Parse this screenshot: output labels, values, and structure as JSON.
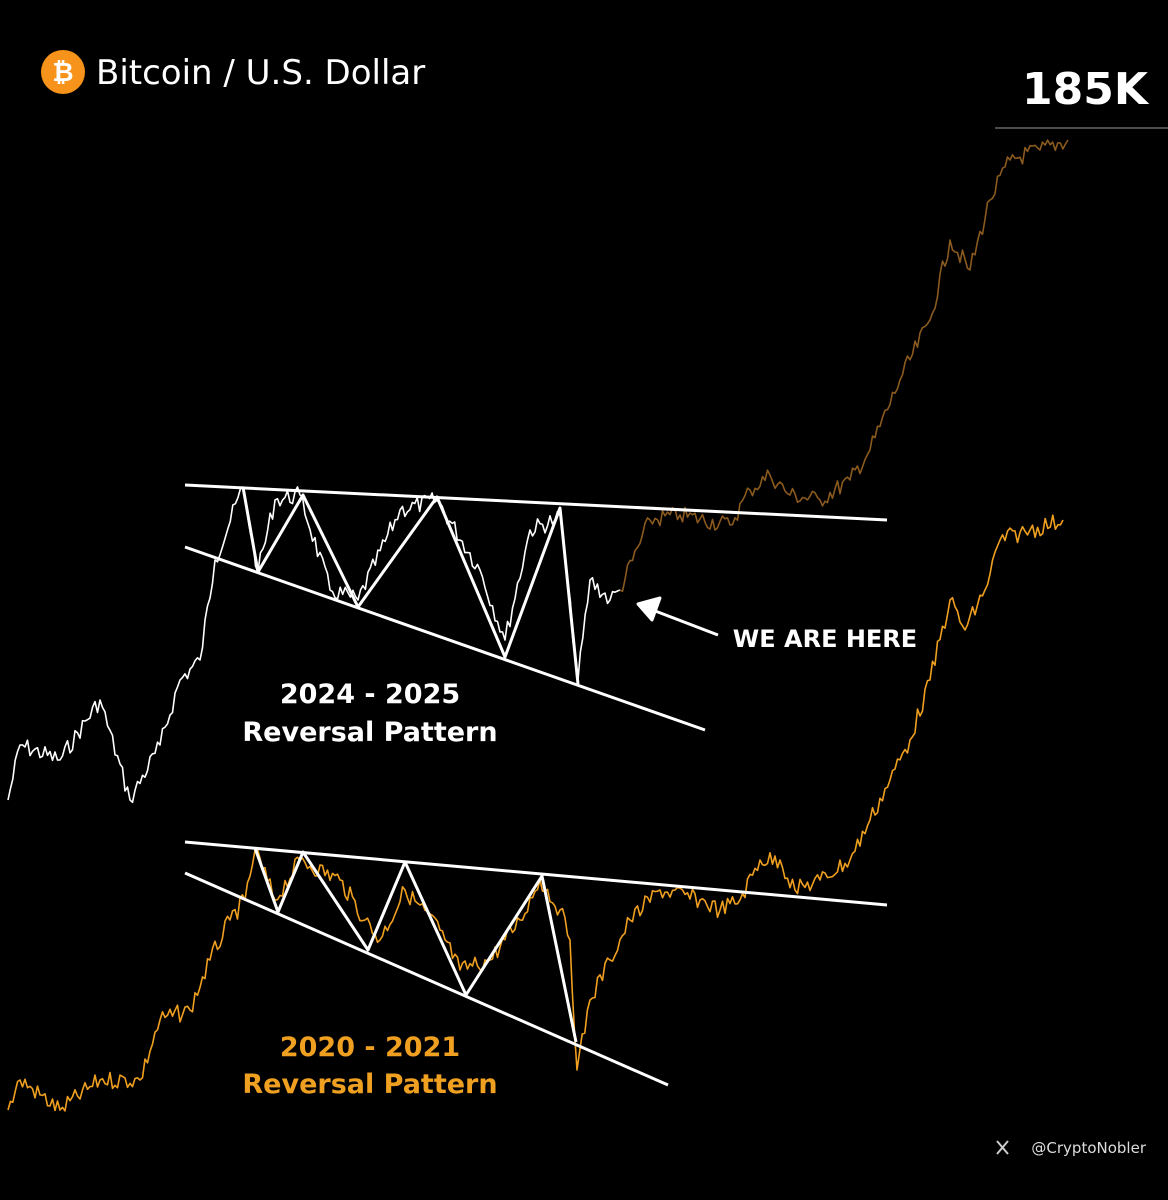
{
  "header": {
    "icon": "₿",
    "title": "Bitcoin / U.S. Dollar",
    "price_label": "185K"
  },
  "annotations": {
    "current": "WE ARE HERE",
    "pattern_2024": {
      "years": "2024 - 2025",
      "label": "Reversal Pattern"
    },
    "pattern_2020": {
      "years": "2020 - 2021",
      "label": "Reversal Pattern"
    }
  },
  "footer": {
    "handle": "@CryptoNobler"
  }
}
